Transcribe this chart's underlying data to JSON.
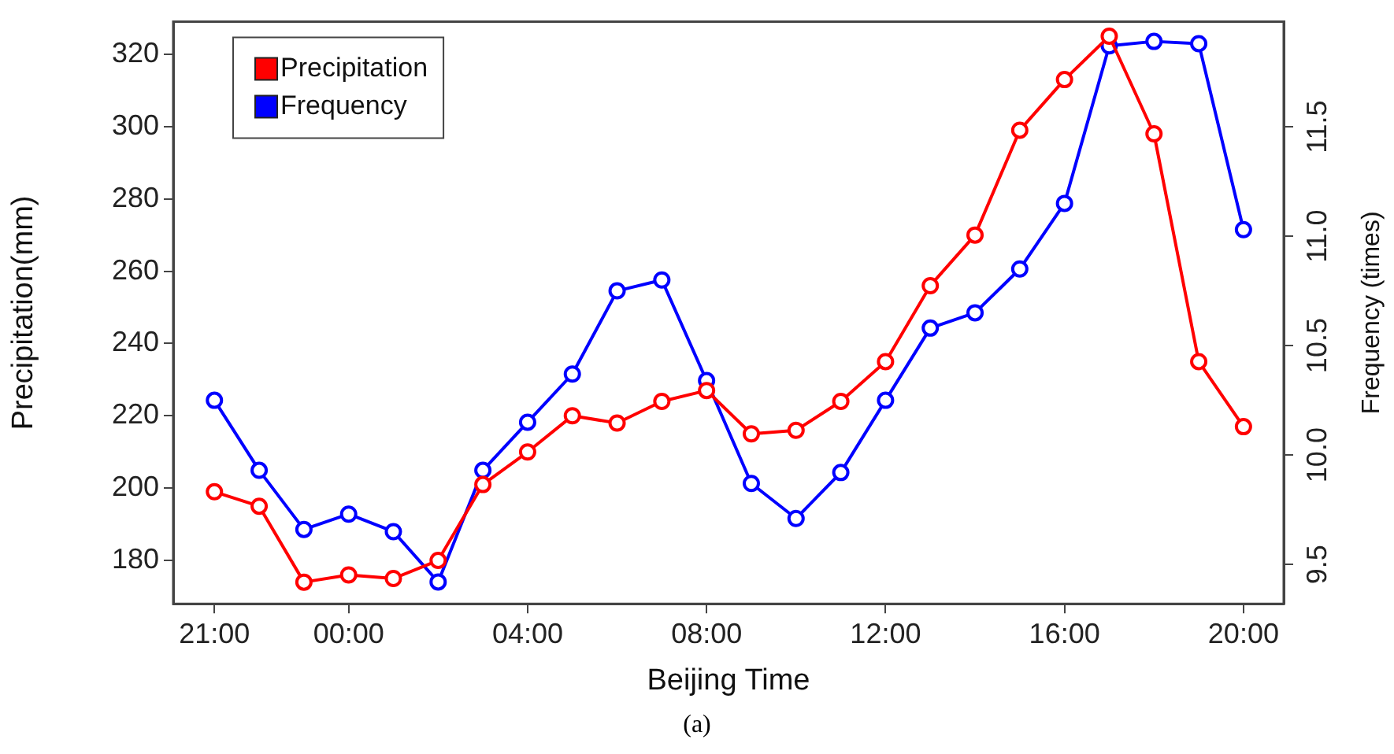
{
  "chart_data": {
    "type": "line",
    "xlabel": "Beijing Time",
    "ylabel": "Precipitation(mm)",
    "y2label": "Frequency (times)",
    "annotations": [
      "(a)"
    ],
    "categories": [
      "21:00",
      null,
      null,
      "00:00",
      null,
      null,
      null,
      "04:00",
      null,
      null,
      null,
      "08:00",
      null,
      null,
      null,
      "12:00",
      null,
      null,
      null,
      "16:00",
      null,
      null,
      null,
      "20:00"
    ],
    "ylim": [
      168,
      329
    ],
    "yticks": [
      180,
      200,
      220,
      240,
      260,
      280,
      300,
      320
    ],
    "y2lim": [
      9.32,
      11.98
    ],
    "y2ticks": [
      {
        "value": 9.5,
        "label": "9.5"
      },
      {
        "value": 10,
        "label": "10.0"
      },
      {
        "value": 10.5,
        "label": "10.5"
      },
      {
        "value": 11,
        "label": "11.0"
      },
      {
        "value": 11.5,
        "label": "11.5"
      }
    ],
    "series": [
      {
        "name": "Precipitation",
        "color": "#ff0000",
        "values": [
          199,
          195,
          174,
          176,
          175,
          180,
          201,
          210,
          220,
          218,
          224,
          227,
          215,
          216,
          224,
          235,
          256,
          270,
          299,
          313,
          325,
          298,
          235,
          217
        ]
      },
      {
        "name": "Frequency",
        "color": "#0000ff",
        "axis": "y2",
        "values": [
          10.25,
          9.93,
          9.66,
          9.73,
          9.65,
          9.42,
          9.93,
          10.15,
          10.37,
          10.75,
          10.8,
          10.34,
          9.87,
          9.71,
          9.92,
          10.25,
          10.58,
          10.65,
          10.85,
          11.15,
          11.87,
          11.89,
          11.88,
          11.03
        ]
      }
    ],
    "marker": "circle",
    "line_style": "solid",
    "grid": false,
    "legend": "top left"
  }
}
